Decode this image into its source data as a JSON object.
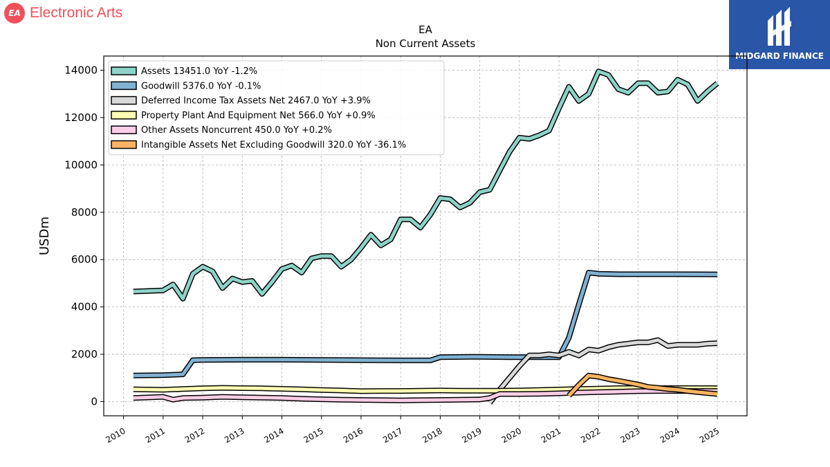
{
  "header": {
    "brand_name": "Electronic Arts",
    "brand_icon_text": "EA",
    "partner_name": "MIDGARD FINANCE"
  },
  "colors": {
    "brand_red": "#f0505a",
    "partner_blue": "#2a56a8"
  },
  "chart_data": {
    "type": "line",
    "title": "EA",
    "subtitle": "Non Current  Assets",
    "ylabel": "USDm",
    "xlabel": "",
    "ylim": [
      -600,
      14600
    ],
    "xlim": [
      2009.5,
      2025.75
    ],
    "yticks": [
      0,
      2000,
      4000,
      6000,
      8000,
      10000,
      12000,
      14000
    ],
    "xticks": [
      "2010",
      "2011",
      "2012",
      "2013",
      "2014",
      "2015",
      "2016",
      "2017",
      "2018",
      "2019",
      "2020",
      "2021",
      "2022",
      "2023",
      "2024",
      "2025"
    ],
    "grid": true,
    "legend_position": "top-left",
    "series": [
      {
        "name": "Assets  13451.0 YoY -1.2%",
        "color": "#8dd3c7",
        "x": [
          2010.25,
          2011.0,
          2011.25,
          2011.5,
          2011.75,
          2012.0,
          2012.25,
          2012.5,
          2012.75,
          2013.0,
          2013.25,
          2013.5,
          2013.75,
          2014.0,
          2014.25,
          2014.5,
          2014.75,
          2015.0,
          2015.25,
          2015.5,
          2015.75,
          2016.0,
          2016.25,
          2016.5,
          2016.75,
          2017.0,
          2017.25,
          2017.5,
          2017.75,
          2018.0,
          2018.25,
          2018.5,
          2018.75,
          2019.0,
          2019.25,
          2019.5,
          2019.75,
          2020.0,
          2020.25,
          2020.5,
          2020.75,
          2021.0,
          2021.25,
          2021.5,
          2021.75,
          2022.0,
          2022.25,
          2022.5,
          2022.75,
          2023.0,
          2023.25,
          2023.5,
          2023.75,
          2024.0,
          2024.25,
          2024.5,
          2024.75,
          2025.0
        ],
        "values": [
          4650,
          4700,
          4950,
          4350,
          5400,
          5700,
          5500,
          4800,
          5200,
          5050,
          5100,
          4550,
          5050,
          5600,
          5750,
          5450,
          6050,
          6150,
          6150,
          5700,
          6000,
          6500,
          7050,
          6600,
          6850,
          7700,
          7700,
          7350,
          7900,
          8600,
          8550,
          8200,
          8400,
          8850,
          8950,
          9750,
          10550,
          11150,
          11100,
          11250,
          11450,
          12400,
          13300,
          12700,
          13000,
          13950,
          13800,
          13200,
          13050,
          13450,
          13450,
          13050,
          13100,
          13600,
          13400,
          12700,
          13100,
          13451
        ]
      },
      {
        "name": "Goodwill  5376.0 YoY -0.1%",
        "color": "#80b1d3",
        "x": [
          2010.25,
          2011.0,
          2011.5,
          2011.75,
          2012.0,
          2013.0,
          2014.0,
          2015.0,
          2016.0,
          2017.0,
          2017.75,
          2018.0,
          2018.75,
          2019.0,
          2019.75,
          2020.0,
          2020.75,
          2021.0,
          2021.25,
          2021.5,
          2021.75,
          2022.0,
          2022.5,
          2023.0,
          2024.0,
          2025.0
        ],
        "values": [
          1100,
          1120,
          1150,
          1750,
          1760,
          1770,
          1770,
          1760,
          1750,
          1740,
          1740,
          1880,
          1890,
          1890,
          1880,
          1880,
          1880,
          1880,
          2700,
          4100,
          5450,
          5400,
          5380,
          5380,
          5380,
          5376
        ]
      },
      {
        "name": "Deferred Income Tax Assets Net  2467.0 YoY +3.9%",
        "color": "#d9d9d9",
        "x": [
          2019.25,
          2019.5,
          2019.75,
          2020.0,
          2020.25,
          2020.5,
          2020.75,
          2021.0,
          2021.25,
          2021.5,
          2021.75,
          2022.0,
          2022.25,
          2022.5,
          2022.75,
          2023.0,
          2023.25,
          2023.5,
          2023.75,
          2024.0,
          2024.25,
          2024.5,
          2024.75,
          2025.0
        ],
        "values": [
          -50,
          500,
          1000,
          1500,
          1950,
          1950,
          2000,
          1950,
          2100,
          1950,
          2200,
          2150,
          2300,
          2400,
          2450,
          2500,
          2500,
          2600,
          2350,
          2400,
          2400,
          2400,
          2450,
          2467
        ]
      },
      {
        "name": "Property Plant And Equipment Net  566.0 YoY +0.9%",
        "color": "#ffffb3",
        "x": [
          2010.25,
          2011.0,
          2011.5,
          2012.0,
          2012.5,
          2013.0,
          2013.5,
          2014.0,
          2014.5,
          2015.0,
          2015.5,
          2016.0,
          2016.5,
          2017.0,
          2017.5,
          2018.0,
          2018.5,
          2019.0,
          2019.5,
          2020.0,
          2020.5,
          2021.0,
          2021.5,
          2022.0,
          2022.5,
          2023.0,
          2023.5,
          2024.0,
          2024.5,
          2025.0
        ],
        "values": [
          520,
          500,
          530,
          560,
          580,
          570,
          560,
          540,
          520,
          490,
          470,
          440,
          450,
          450,
          460,
          470,
          460,
          460,
          460,
          470,
          490,
          510,
          530,
          550,
          570,
          570,
          570,
          570,
          570,
          566
        ]
      },
      {
        "name": "Other Assets Noncurrent  450.0 YoY +0.2%",
        "color": "#fccde5",
        "x": [
          2010.25,
          2011.0,
          2011.25,
          2011.5,
          2012.0,
          2012.5,
          2013.0,
          2013.5,
          2014.0,
          2014.5,
          2015.0,
          2015.5,
          2016.0,
          2016.5,
          2017.0,
          2017.5,
          2018.0,
          2018.5,
          2019.0,
          2019.25,
          2019.5,
          2020.0,
          2020.5,
          2021.0,
          2021.5,
          2022.0,
          2022.5,
          2023.0,
          2023.5,
          2024.0,
          2024.5,
          2025.0
        ],
        "values": [
          150,
          200,
          80,
          150,
          170,
          200,
          180,
          170,
          150,
          120,
          100,
          80,
          70,
          60,
          50,
          60,
          70,
          80,
          90,
          150,
          320,
          320,
          330,
          350,
          380,
          400,
          420,
          440,
          450,
          450,
          450,
          450
        ]
      },
      {
        "name": "Intangible Assets Net Excluding Goodwill  320.0 YoY -36.1%",
        "color": "#fdb462",
        "x": [
          2021.25,
          2021.5,
          2021.75,
          2022.0,
          2022.25,
          2022.5,
          2022.75,
          2023.0,
          2023.25,
          2023.5,
          2023.75,
          2024.0,
          2024.25,
          2024.5,
          2024.75,
          2025.0
        ],
        "values": [
          250,
          700,
          1100,
          1050,
          950,
          880,
          800,
          720,
          620,
          580,
          530,
          500,
          450,
          400,
          360,
          320
        ]
      }
    ]
  }
}
